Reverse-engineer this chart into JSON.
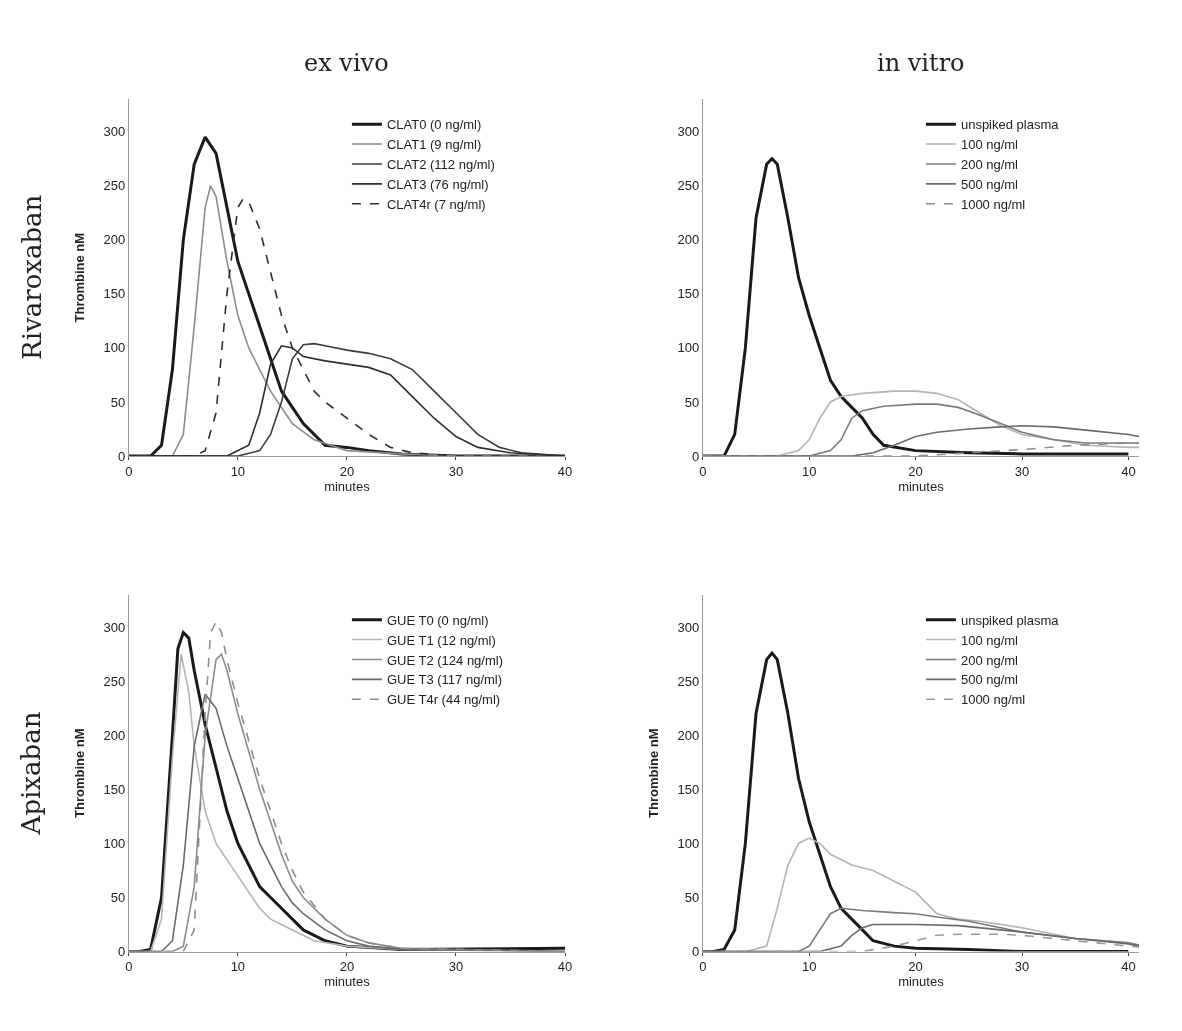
{
  "chart_data": [
    {
      "type": "line",
      "title": "ex vivo",
      "annotations": [
        "Rivaroxaban"
      ],
      "xlabel": "minutes",
      "ylabel": "Thrombine nM",
      "xlim": [
        0,
        40
      ],
      "xticks": [
        0,
        10,
        20,
        30,
        40
      ],
      "ylim": [
        0,
        330
      ],
      "yticks": [
        0,
        50,
        100,
        150,
        200,
        250,
        300
      ],
      "legend": "top right",
      "grid": false,
      "series": [
        {
          "name": "CLAT0 (0 ng/ml)",
          "color": "#1a1a1a",
          "line_style": "solid",
          "x": [
            0,
            2,
            3,
            4,
            5,
            6,
            7,
            8,
            9,
            10,
            11,
            12,
            13,
            14,
            15,
            16,
            17,
            18,
            20,
            22,
            25,
            30,
            40
          ],
          "values": [
            0,
            0,
            10,
            80,
            200,
            270,
            295,
            280,
            230,
            180,
            150,
            120,
            90,
            60,
            45,
            30,
            20,
            10,
            8,
            5,
            2,
            0,
            0
          ]
        },
        {
          "name": "CLAT1 (9 ng/ml)",
          "color": "#8c8c8c",
          "line_style": "solid",
          "x": [
            0,
            4,
            5,
            6,
            7,
            7.5,
            8,
            9,
            10,
            11,
            12,
            13,
            14,
            15,
            17,
            20,
            25,
            30,
            40
          ],
          "values": [
            0,
            0,
            20,
            120,
            230,
            250,
            240,
            180,
            130,
            100,
            80,
            60,
            45,
            30,
            15,
            5,
            2,
            0,
            0
          ]
        },
        {
          "name": "CLAT2 (112 ng/ml)",
          "color": "#3c3c3c",
          "line_style": "solid",
          "x": [
            0,
            10,
            12,
            13,
            14,
            15,
            16,
            17,
            18,
            20,
            22,
            24,
            26,
            28,
            30,
            32,
            34,
            36,
            40
          ],
          "values": [
            0,
            0,
            5,
            20,
            50,
            90,
            103,
            104,
            102,
            98,
            95,
            90,
            80,
            60,
            40,
            20,
            8,
            3,
            0
          ]
        },
        {
          "name": "CLAT3 (76 ng/ml)",
          "color": "#2e2e2e",
          "line_style": "solid",
          "x": [
            0,
            9,
            11,
            12,
            13,
            14,
            15,
            16,
            18,
            20,
            22,
            24,
            26,
            28,
            30,
            32,
            35,
            40
          ],
          "values": [
            0,
            0,
            10,
            40,
            85,
            102,
            100,
            92,
            88,
            85,
            82,
            75,
            55,
            35,
            18,
            8,
            3,
            0
          ]
        },
        {
          "name": "CLAT4r (7 ng/ml)",
          "color": "#2e2e2e",
          "line_style": "dashed",
          "x": [
            0,
            6,
            7,
            8,
            9,
            10,
            10.5,
            11,
            12,
            13,
            14,
            15,
            16,
            17,
            18,
            20,
            22,
            24,
            26,
            30,
            40
          ],
          "values": [
            0,
            0,
            5,
            40,
            150,
            230,
            238,
            235,
            210,
            170,
            130,
            100,
            80,
            60,
            50,
            35,
            20,
            8,
            3,
            0,
            0
          ]
        }
      ]
    },
    {
      "type": "line",
      "title": "in vitro",
      "xlabel": "minutes",
      "xlim": [
        0,
        41
      ],
      "xticks": [
        0,
        10,
        20,
        30,
        40
      ],
      "ylim": [
        0,
        330
      ],
      "yticks": [
        0,
        50,
        100,
        150,
        200,
        250,
        300
      ],
      "legend": "top right",
      "grid": false,
      "series": [
        {
          "name": "unspiked plasma",
          "color": "#1a1a1a",
          "line_style": "solid",
          "x": [
            0,
            2,
            3,
            4,
            5,
            6,
            6.5,
            7,
            8,
            9,
            10,
            11,
            12,
            13,
            14,
            15,
            16,
            17,
            20,
            25,
            30,
            40
          ],
          "values": [
            0,
            0,
            20,
            100,
            220,
            270,
            275,
            270,
            220,
            165,
            130,
            100,
            70,
            55,
            45,
            35,
            20,
            10,
            5,
            3,
            2,
            2
          ]
        },
        {
          "name": "100 ng/ml",
          "color": "#b4b4b4",
          "line_style": "solid",
          "x": [
            0,
            7,
            9,
            10,
            11,
            12,
            13,
            15,
            18,
            20,
            22,
            24,
            26,
            28,
            30,
            33,
            36,
            40,
            41
          ],
          "values": [
            0,
            0,
            5,
            15,
            35,
            50,
            55,
            58,
            60,
            60,
            58,
            52,
            40,
            28,
            20,
            15,
            10,
            8,
            8
          ]
        },
        {
          "name": "200 ng/ml",
          "color": "#7a7a7a",
          "line_style": "solid",
          "x": [
            0,
            10,
            12,
            13,
            14,
            15,
            17,
            20,
            22,
            24,
            26,
            28,
            30,
            33,
            36,
            40,
            41
          ],
          "values": [
            0,
            0,
            5,
            15,
            35,
            42,
            46,
            48,
            48,
            45,
            38,
            30,
            22,
            15,
            12,
            12,
            12
          ]
        },
        {
          "name": "500 ng/ml",
          "color": "#6a6a6a",
          "line_style": "solid",
          "x": [
            0,
            14,
            16,
            18,
            20,
            22,
            25,
            28,
            30,
            33,
            36,
            40,
            41
          ],
          "values": [
            0,
            0,
            3,
            10,
            18,
            22,
            25,
            27,
            28,
            27,
            24,
            20,
            18
          ]
        },
        {
          "name": "1000 ng/ml",
          "color": "#8c8c8c",
          "line_style": "dashed",
          "x": [
            0,
            20,
            25,
            30,
            35,
            40,
            41
          ],
          "values": [
            0,
            0,
            3,
            6,
            10,
            12,
            12
          ]
        }
      ]
    },
    {
      "type": "line",
      "annotations": [
        "Apixaban"
      ],
      "xlabel": "minutes",
      "ylabel": "Thrombine nM",
      "xlim": [
        0,
        40
      ],
      "xticks": [
        0,
        10,
        20,
        30,
        40
      ],
      "ylim": [
        0,
        330
      ],
      "yticks": [
        0,
        50,
        100,
        150,
        200,
        250,
        300
      ],
      "legend": "top right",
      "grid": false,
      "series": [
        {
          "name": "GUE T0 (0 ng/ml)",
          "color": "#1a1a1a",
          "line_style": "solid",
          "x": [
            0,
            1,
            2,
            3,
            4,
            4.5,
            5,
            5.5,
            6,
            7,
            8,
            9,
            10,
            11,
            12,
            13,
            14,
            15,
            16,
            18,
            20,
            25,
            40
          ],
          "values": [
            0,
            0,
            2,
            50,
            200,
            280,
            295,
            290,
            260,
            210,
            170,
            130,
            100,
            80,
            60,
            50,
            40,
            30,
            20,
            10,
            5,
            2,
            3
          ]
        },
        {
          "name": "GUE T1 (12 ng/ml)",
          "color": "#b4b4b4",
          "line_style": "solid",
          "x": [
            0,
            2,
            3,
            4,
            4.8,
            5.5,
            6,
            7,
            8,
            9,
            10,
            11,
            12,
            13,
            15,
            17,
            20,
            25,
            40
          ],
          "values": [
            0,
            0,
            30,
            180,
            275,
            240,
            190,
            130,
            100,
            85,
            70,
            55,
            40,
            30,
            20,
            10,
            5,
            2,
            0
          ]
        },
        {
          "name": "GUE T2 (124 ng/ml)",
          "color": "#8c8c8c",
          "line_style": "solid",
          "x": [
            0,
            4,
            5,
            6,
            7,
            8,
            8.5,
            9,
            10,
            11,
            12,
            13,
            14,
            15,
            16,
            18,
            20,
            22,
            25,
            40
          ],
          "values": [
            0,
            0,
            5,
            60,
            200,
            270,
            275,
            260,
            220,
            185,
            150,
            120,
            90,
            65,
            50,
            30,
            15,
            8,
            3,
            0
          ]
        },
        {
          "name": "GUE T3 (117 ng/ml)",
          "color": "#6a6a6a",
          "line_style": "solid",
          "x": [
            0,
            3,
            4,
            5,
            6,
            7,
            8,
            9,
            10,
            11,
            12,
            13,
            14,
            15,
            16,
            18,
            20,
            22,
            25,
            40
          ],
          "values": [
            0,
            0,
            10,
            80,
            190,
            238,
            225,
            190,
            160,
            130,
            100,
            80,
            60,
            45,
            35,
            20,
            10,
            5,
            2,
            0
          ]
        },
        {
          "name": "GUE T4r (44 ng/ml)",
          "color": "#8c8c8c",
          "line_style": "dashed",
          "x": [
            0,
            5,
            6,
            7,
            7.5,
            8,
            8.5,
            9,
            10,
            11,
            12,
            13,
            14,
            15,
            16,
            18,
            20,
            22,
            25,
            40
          ],
          "values": [
            0,
            0,
            20,
            220,
            295,
            305,
            295,
            270,
            230,
            195,
            160,
            130,
            100,
            75,
            55,
            30,
            15,
            8,
            3,
            0
          ]
        }
      ]
    },
    {
      "type": "line",
      "xlabel": "minutes",
      "ylabel": "Thrombine nM",
      "xlim": [
        0,
        41
      ],
      "xticks": [
        0,
        10,
        20,
        30,
        40
      ],
      "ylim": [
        0,
        330
      ],
      "yticks": [
        0,
        50,
        100,
        150,
        200,
        250,
        300
      ],
      "legend": "top right",
      "grid": false,
      "series": [
        {
          "name": "unspiked plasma",
          "color": "#1a1a1a",
          "line_style": "solid",
          "x": [
            0,
            1,
            2,
            3,
            4,
            5,
            6,
            6.5,
            7,
            8,
            9,
            10,
            11,
            12,
            13,
            14,
            15,
            16,
            18,
            20,
            25,
            30,
            40
          ],
          "values": [
            0,
            0,
            2,
            20,
            100,
            220,
            270,
            276,
            270,
            220,
            160,
            120,
            90,
            60,
            40,
            30,
            20,
            10,
            5,
            3,
            2,
            0,
            0
          ]
        },
        {
          "name": "100 ng/ml",
          "color": "#b4b4b4",
          "line_style": "solid",
          "x": [
            0,
            4,
            6,
            7,
            8,
            9,
            10,
            11,
            12,
            14,
            16,
            18,
            20,
            21,
            22,
            24,
            26,
            30,
            35,
            40,
            41
          ],
          "values": [
            0,
            0,
            5,
            40,
            80,
            100,
            105,
            100,
            90,
            80,
            75,
            65,
            55,
            45,
            35,
            30,
            28,
            22,
            12,
            8,
            5
          ]
        },
        {
          "name": "200 ng/ml",
          "color": "#7a7a7a",
          "line_style": "solid",
          "x": [
            0,
            9,
            10,
            11,
            12,
            13,
            15,
            18,
            20,
            22,
            25,
            28,
            30,
            35,
            40,
            41
          ],
          "values": [
            0,
            0,
            5,
            20,
            35,
            40,
            38,
            36,
            35,
            32,
            28,
            22,
            18,
            12,
            8,
            6
          ]
        },
        {
          "name": "500 ng/ml",
          "color": "#6a6a6a",
          "line_style": "solid",
          "x": [
            0,
            11,
            13,
            14,
            15,
            16,
            20,
            24,
            28,
            30,
            35,
            40,
            41
          ],
          "values": [
            0,
            0,
            5,
            15,
            22,
            25,
            25,
            24,
            20,
            18,
            12,
            7,
            5
          ]
        },
        {
          "name": "1000 ng/ml",
          "color": "#9a9a9a",
          "line_style": "dashed",
          "x": [
            0,
            15,
            18,
            20,
            22,
            24,
            28,
            30,
            35,
            40,
            41
          ],
          "values": [
            0,
            0,
            5,
            10,
            15,
            16,
            16,
            15,
            10,
            5,
            4
          ]
        }
      ]
    }
  ]
}
